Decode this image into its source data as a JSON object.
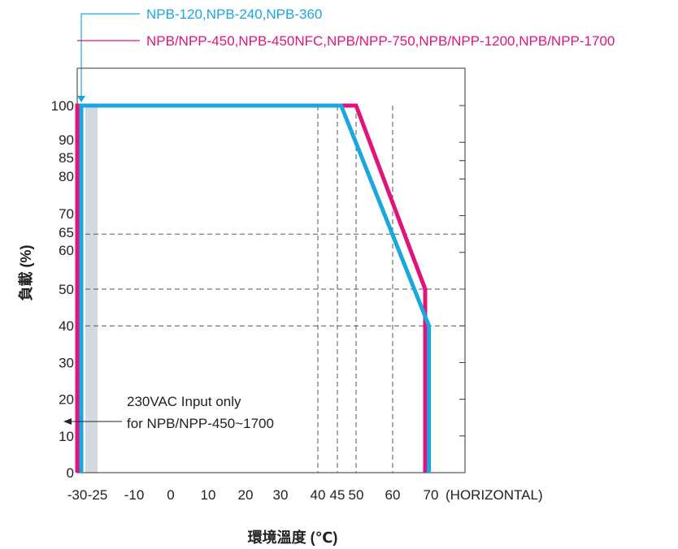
{
  "chart_data": {
    "type": "line",
    "xlabel": "環境溫度 (℃)",
    "ylabel": "負載 (%)",
    "x_ticks": [
      "-30",
      "-25",
      "-10",
      "0",
      "10",
      "20",
      "30",
      "40",
      "45",
      "50",
      "60",
      "70"
    ],
    "x_axis_suffix": "(HORIZONTAL)",
    "y_ticks": [
      "0",
      "10",
      "20",
      "30",
      "40",
      "50",
      "60",
      "65",
      "70",
      "80",
      "85",
      "90",
      "100"
    ],
    "xlim": [
      -30,
      80
    ],
    "ylim": [
      0,
      100
    ],
    "grid": "dashed reference lines",
    "legend_position": "top",
    "series": [
      {
        "name": "NPB-120,NPB-240,NPB-360",
        "color": "#1aa7e0",
        "points": [
          [
            -29,
            0
          ],
          [
            -29,
            100
          ],
          [
            46,
            100
          ],
          [
            69.5,
            40
          ],
          [
            69.5,
            0
          ]
        ]
      },
      {
        "name": "NPB/NPP-450,NPB-450NFC,NPB/NPP-750,NPB/NPP-1200,NPB/NPP-1700",
        "color": "#e0147a",
        "points": [
          [
            -30,
            0
          ],
          [
            -30,
            100
          ],
          [
            50,
            100
          ],
          [
            68.5,
            50
          ],
          [
            68.5,
            0
          ]
        ]
      }
    ],
    "shaded_region": {
      "x": [
        -28,
        -25
      ],
      "color": "#d3d9e0"
    },
    "annotation": {
      "lines": [
        "230VAC Input only",
        "for NPB/NPP-450~1700"
      ]
    },
    "reference_lines": {
      "vertical_x": [
        40,
        45,
        50,
        60
      ],
      "horizontal_y": [
        40,
        50,
        65
      ]
    }
  }
}
